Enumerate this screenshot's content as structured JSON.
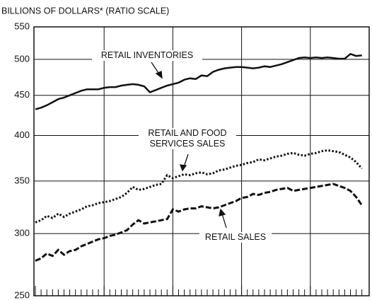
{
  "chart_data": {
    "type": "line",
    "y_label": "BILLIONS OF DOLLARS* (RATIO SCALE)",
    "log_scale": true,
    "ylim": [
      250,
      550
    ],
    "yticks": [
      250,
      300,
      350,
      400,
      450,
      500,
      550
    ],
    "grid": true,
    "categories": [
      null,
      null,
      null,
      null,
      null,
      null,
      null,
      null,
      null,
      null,
      null,
      null,
      null,
      null,
      null,
      null,
      null,
      null,
      null,
      null,
      null,
      null,
      null,
      null,
      null,
      null,
      null,
      null,
      null,
      null,
      null,
      null,
      null,
      null,
      null,
      null,
      null,
      null,
      null,
      null,
      null,
      null,
      null,
      null,
      null,
      null,
      null,
      null,
      null,
      null,
      null,
      null,
      null,
      null,
      null,
      null,
      null,
      null
    ],
    "series": [
      {
        "name": "RETAIL INVENTORIES",
        "color": "#111111",
        "style": "solid",
        "values": [
          432,
          434,
          437,
          441,
          445,
          447,
          450,
          453,
          456,
          458,
          458,
          458,
          460,
          461,
          461,
          463,
          464,
          465,
          464,
          462,
          454,
          457,
          460,
          463,
          465,
          467,
          471,
          473,
          472,
          477,
          476,
          482,
          485,
          487,
          488,
          489,
          489,
          488,
          487,
          488,
          490,
          489,
          491,
          493,
          496,
          499,
          502,
          503,
          502,
          503,
          502,
          503,
          502,
          501,
          501,
          508,
          505,
          506
        ]
      },
      {
        "name": "RETAIL AND FOOD SERVICES SALES",
        "color": "#111111",
        "style": "dotted",
        "values": [
          310,
          312,
          316,
          314,
          318,
          315,
          318,
          320,
          322,
          325,
          326,
          328,
          329,
          330,
          332,
          334,
          338,
          344,
          341,
          342,
          344,
          346,
          347,
          356,
          353,
          355,
          357,
          356,
          358,
          359,
          357,
          358,
          361,
          362,
          364,
          366,
          367,
          369,
          370,
          373,
          372,
          374,
          376,
          377,
          379,
          380,
          378,
          377,
          379,
          380,
          382,
          383,
          382,
          381,
          378,
          375,
          370,
          363
        ]
      },
      {
        "name": "RETAIL SALES",
        "color": "#111111",
        "style": "dashed",
        "values": [
          277,
          279,
          283,
          281,
          286,
          282,
          285,
          286,
          289,
          291,
          293,
          295,
          296,
          298,
          299,
          301,
          303,
          308,
          312,
          309,
          310,
          311,
          312,
          313,
          322,
          320,
          322,
          323,
          323,
          325,
          324,
          323,
          324,
          326,
          328,
          330,
          333,
          334,
          337,
          336,
          338,
          339,
          341,
          342,
          343,
          340,
          341,
          342,
          343,
          344,
          345,
          346,
          347,
          345,
          343,
          340,
          334,
          326
        ]
      }
    ]
  }
}
